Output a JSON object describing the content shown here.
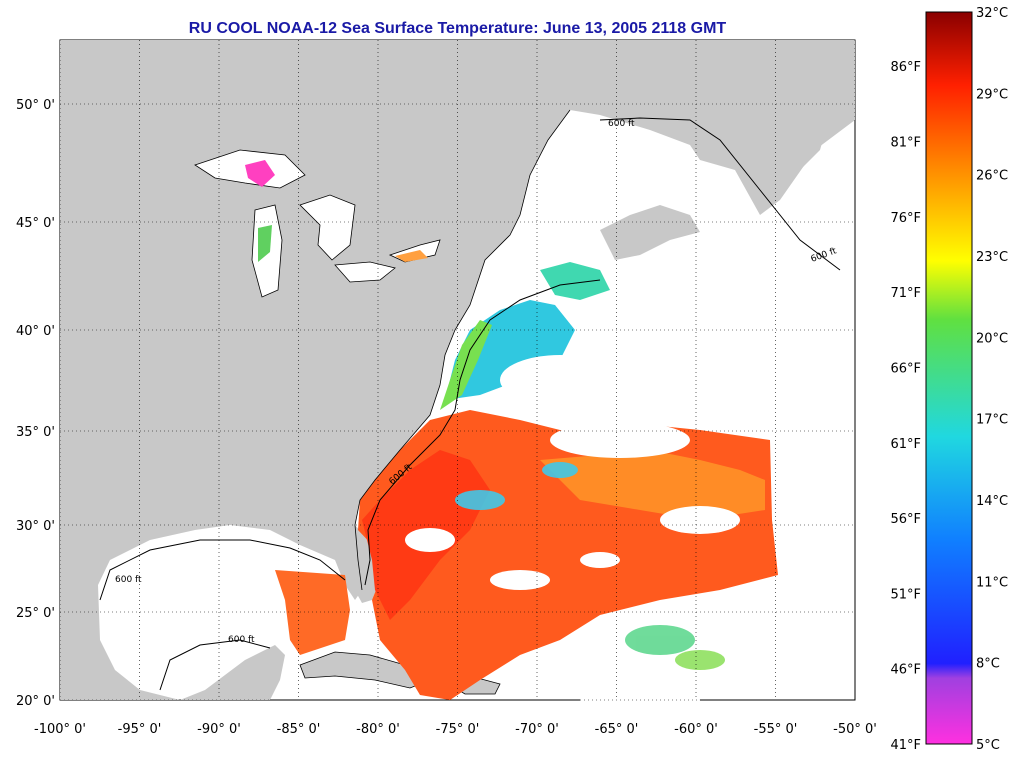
{
  "title": "RU COOL  NOAA-12  Sea Surface Temperature:  June 13, 2005 2118 GMT",
  "lon_ticks": [
    "-100° 0'",
    "-95° 0'",
    "-90° 0'",
    "-85° 0'",
    "-80° 0'",
    "-75° 0'",
    "-70° 0'",
    "-65° 0'",
    "-60° 0'",
    "-55° 0'",
    "-50° 0'"
  ],
  "lat_ticks": [
    "20° 0'",
    "25° 0'",
    "30° 0'",
    "35° 0'",
    "40° 0'",
    "45° 0'",
    "50° 0'"
  ],
  "contour_label": "600 ft",
  "colorbar": {
    "celsius": [
      "32°C",
      "29°C",
      "26°C",
      "23°C",
      "20°C",
      "17°C",
      "14°C",
      "11°C",
      "8°C",
      "5°C"
    ],
    "fahrenheit": [
      "86°F",
      "81°F",
      "76°F",
      "71°F",
      "66°F",
      "61°F",
      "56°F",
      "51°F",
      "46°F",
      "41°F"
    ]
  },
  "colors": {
    "land": "#c8c8c8",
    "cloud": "#ffffff",
    "title": "#1a1aa6",
    "warm": "#ff5a1e",
    "cool": "#30c8e0"
  }
}
